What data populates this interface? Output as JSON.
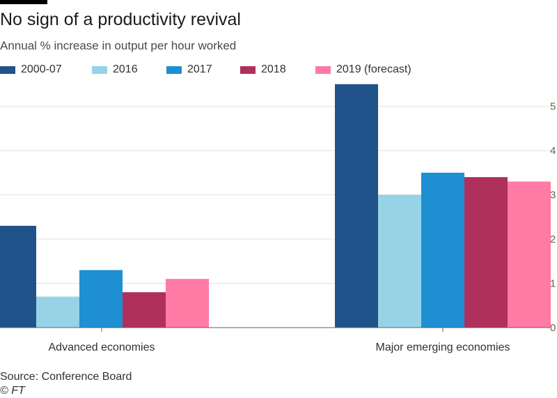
{
  "header": {
    "title": "No sign of a productivity revival",
    "subtitle": "Annual % increase in output per hour worked"
  },
  "footer": {
    "source": "Source: Conference Board",
    "credit": "© FT"
  },
  "chart_data": {
    "type": "bar",
    "title": "No sign of a productivity revival",
    "subtitle": "Annual % increase in output per hour worked",
    "xlabel": "",
    "ylabel": "",
    "categories": [
      "Advanced economies",
      "Major emerging economies"
    ],
    "series": [
      {
        "name": "2000-07",
        "color": "#1f5389",
        "values": [
          2.3,
          5.5
        ]
      },
      {
        "name": "2016",
        "color": "#96d3e6",
        "values": [
          0.7,
          3.0
        ]
      },
      {
        "name": "2017",
        "color": "#1e8fd2",
        "values": [
          1.3,
          3.5
        ]
      },
      {
        "name": "2018",
        "color": "#b0305c",
        "values": [
          0.8,
          3.4
        ]
      },
      {
        "name": "2019 (forecast)",
        "color": "#ff7aa4",
        "values": [
          1.1,
          3.3
        ]
      }
    ],
    "ylim": [
      0,
      5.5
    ],
    "yticks": [
      0,
      1,
      2,
      3,
      4,
      5
    ],
    "grid": true,
    "y_axis_position": "right",
    "legend_position": "top"
  }
}
